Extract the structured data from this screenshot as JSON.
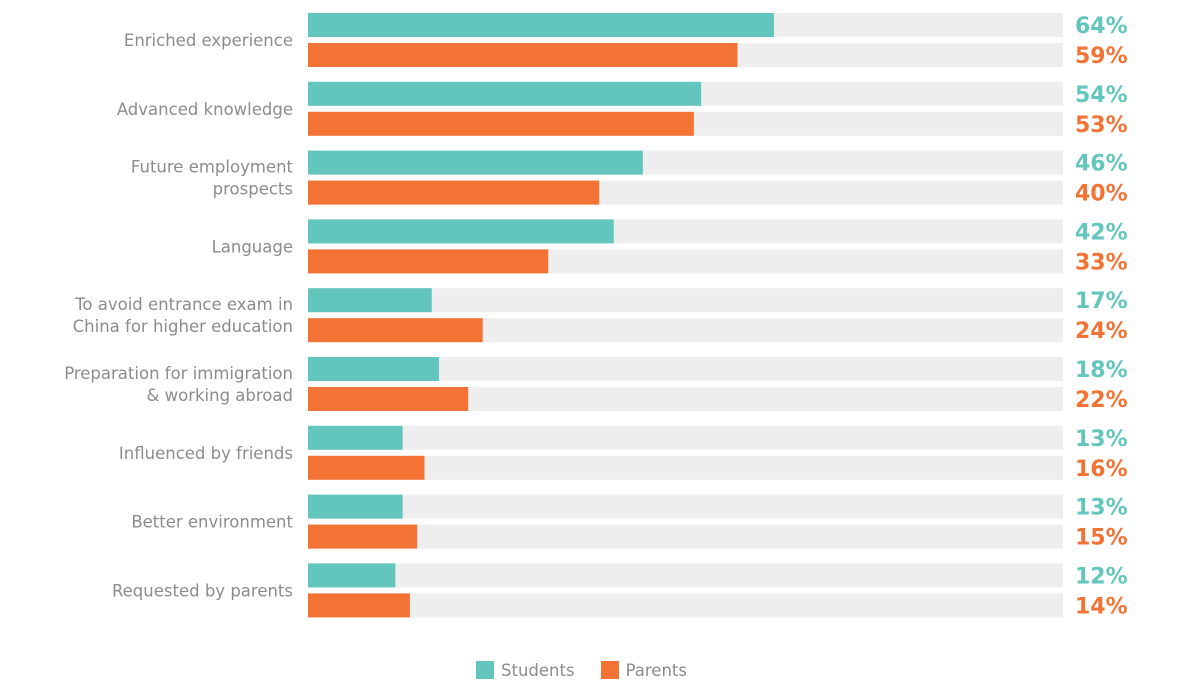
{
  "chart_data": {
    "type": "bar",
    "orientation": "horizontal",
    "categories": [
      "Enriched experience",
      "Advanced knowledge",
      "Future employment prospects",
      "Language",
      "To avoid entrance exam in China for higher education",
      "Preparation for immigration & working abroad",
      "Influenced by friends",
      "Better environment",
      "Requested by parents"
    ],
    "category_lines": [
      [
        "Enriched experience"
      ],
      [
        "Advanced knowledge"
      ],
      [
        "Future employment",
        "prospects"
      ],
      [
        "Language"
      ],
      [
        "To avoid entrance exam in",
        "China for higher education"
      ],
      [
        "Preparation for immigration",
        "& working abroad"
      ],
      [
        "Influenced by friends"
      ],
      [
        "Better environment"
      ],
      [
        "Requested by parents"
      ]
    ],
    "series": [
      {
        "name": "Students",
        "color": "#62c6bd",
        "values": [
          64,
          54,
          46,
          42,
          17,
          18,
          13,
          13,
          12
        ],
        "labels": [
          "64%",
          "54%",
          "46%",
          "42%",
          "17%",
          "18%",
          "13%",
          "13%",
          "12%"
        ]
      },
      {
        "name": "Parents",
        "color": "#f37335",
        "values": [
          59,
          53,
          40,
          33,
          24,
          22,
          16,
          15,
          14
        ],
        "labels": [
          "59%",
          "53%",
          "40%",
          "33%",
          "24%",
          "22%",
          "16%",
          "15%",
          "14%"
        ]
      }
    ],
    "xlim": [
      0,
      100
    ],
    "track_color": "#eeeeee",
    "legend_position": "bottom"
  }
}
